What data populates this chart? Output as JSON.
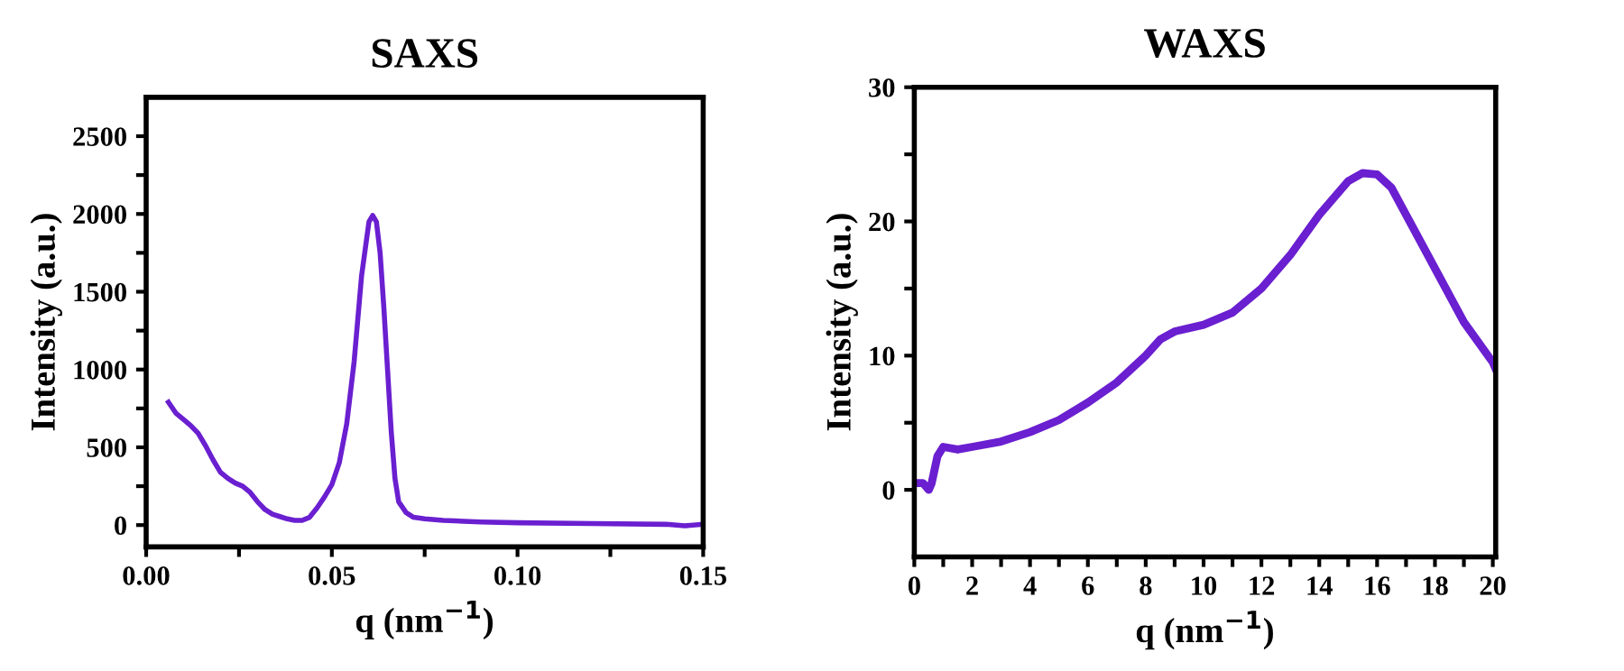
{
  "chart_data": [
    {
      "type": "line",
      "title": "SAXS",
      "xlabel": "q (nm$^{−1}$)",
      "ylabel": "Intensity (a.u.)",
      "series": [
        {
          "color": "#6a1fd0",
          "x": [
            0.006,
            0.008,
            0.01,
            0.012,
            0.014,
            0.016,
            0.018,
            0.02,
            0.022,
            0.024,
            0.026,
            0.028,
            0.03,
            0.032,
            0.034,
            0.036,
            0.038,
            0.04,
            0.042,
            0.044,
            0.046,
            0.048,
            0.05,
            0.052,
            0.054,
            0.056,
            0.058,
            0.06,
            0.061,
            0.062,
            0.063,
            0.064,
            0.065,
            0.066,
            0.067,
            0.068,
            0.07,
            0.072,
            0.075,
            0.08,
            0.09,
            0.1,
            0.12,
            0.14,
            0.145,
            0.15
          ],
          "values": [
            790,
            720,
            680,
            640,
            590,
            510,
            420,
            340,
            300,
            270,
            250,
            210,
            150,
            100,
            70,
            55,
            40,
            30,
            30,
            50,
            110,
            180,
            260,
            400,
            650,
            1050,
            1600,
            1950,
            1990,
            1950,
            1750,
            1400,
            1000,
            600,
            300,
            150,
            80,
            50,
            40,
            30,
            20,
            15,
            10,
            5,
            -5,
            5
          ]
        }
      ],
      "xlim": [
        0,
        0.15
      ],
      "ylim": [
        -140,
        2750
      ],
      "xticks": [
        {
          "value": 0,
          "label": "0.00"
        },
        {
          "value": 0.025,
          "label": null
        },
        {
          "value": 0.05,
          "label": "0.05"
        },
        {
          "value": 0.075,
          "label": null
        },
        {
          "value": 0.1,
          "label": "0.10"
        },
        {
          "value": 0.125,
          "label": null
        },
        {
          "value": 0.15,
          "label": "0.15"
        }
      ],
      "yticks": [
        0,
        {
          "value": 250,
          "label": null
        },
        500,
        {
          "value": 750,
          "label": null
        },
        1000,
        {
          "value": 1250,
          "label": null
        },
        1500,
        {
          "value": 1750,
          "label": null
        },
        2000,
        {
          "value": 2250,
          "label": null
        },
        2500
      ],
      "grid": false,
      "legend": false
    },
    {
      "type": "line",
      "title": "WAXS",
      "xlabel": "q (nm$^{−1}$)",
      "ylabel": "Intensity (a.u.)",
      "series": [
        {
          "color": "#6a1fd0",
          "x": [
            0.2,
            0.3,
            0.5,
            0.6,
            0.8,
            1.0,
            1.5,
            2,
            3,
            4,
            5,
            6,
            7,
            8,
            8.5,
            9,
            10,
            11,
            12,
            13,
            14,
            15,
            15.5,
            16,
            16.5,
            17,
            18,
            19,
            20,
            20.1
          ],
          "values": [
            0.5,
            0.5,
            0,
            0.5,
            2.5,
            3.2,
            3.0,
            3.2,
            3.6,
            4.3,
            5.2,
            6.5,
            8,
            10,
            11.2,
            11.8,
            12.3,
            13.2,
            15,
            17.5,
            20.5,
            23,
            23.6,
            23.5,
            22.5,
            20.5,
            16.5,
            12.5,
            9.5,
            9
          ]
        }
      ],
      "xlim": [
        0,
        20.1
      ],
      "ylim": [
        -5,
        30
      ],
      "xticks": [
        0,
        {
          "value": 1,
          "label": null
        },
        2,
        {
          "value": 3,
          "label": null
        },
        4,
        {
          "value": 5,
          "label": null
        },
        6,
        {
          "value": 7,
          "label": null
        },
        8,
        {
          "value": 9,
          "label": null
        },
        10,
        {
          "value": 11,
          "label": null
        },
        12,
        {
          "value": 13,
          "label": null
        },
        14,
        {
          "value": 15,
          "label": null
        },
        16,
        {
          "value": 17,
          "label": null
        },
        18,
        {
          "value": 19,
          "label": null
        },
        20
      ],
      "yticks": [
        0,
        {
          "value": 5,
          "label": null
        },
        10,
        {
          "value": 15,
          "label": null
        },
        20,
        {
          "value": 25,
          "label": null
        },
        30
      ],
      "grid": false,
      "legend": false
    }
  ]
}
